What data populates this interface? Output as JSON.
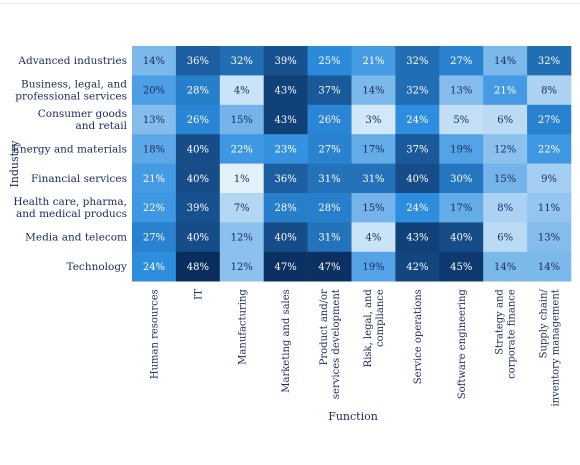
{
  "chart_data": {
    "type": "heatmap",
    "xlabel": "Function",
    "ylabel": "Industry",
    "rows": [
      [
        "Advanced industries"
      ],
      [
        "Business, legal, and",
        "professional services"
      ],
      [
        "Consumer goods",
        "and retail"
      ],
      [
        "Energy and materials"
      ],
      [
        "Financial services"
      ],
      [
        "Health care, pharma,",
        "and medical producs"
      ],
      [
        "Media and telecom"
      ],
      [
        "Technology"
      ]
    ],
    "columns": [
      [
        "Human resources"
      ],
      [
        "IT"
      ],
      [
        "Manufacturing"
      ],
      [
        "Marketing and sales"
      ],
      [
        "Product and/or",
        "services development"
      ],
      [
        "Risk, legal, and",
        "compliance"
      ],
      [
        "Service operations"
      ],
      [
        "Software engineering"
      ],
      [
        "Strategy and",
        "corporate finance"
      ],
      [
        "Supply chain/",
        "inventory management"
      ]
    ],
    "values": [
      [
        14,
        36,
        32,
        39,
        25,
        21,
        32,
        27,
        14,
        32
      ],
      [
        20,
        28,
        4,
        43,
        37,
        14,
        32,
        13,
        21,
        8
      ],
      [
        13,
        26,
        15,
        43,
        26,
        3,
        24,
        5,
        6,
        27
      ],
      [
        18,
        40,
        22,
        23,
        27,
        17,
        37,
        19,
        12,
        22
      ],
      [
        21,
        40,
        1,
        36,
        31,
        31,
        40,
        30,
        15,
        9
      ],
      [
        22,
        39,
        7,
        28,
        28,
        15,
        24,
        17,
        8,
        11
      ],
      [
        27,
        40,
        12,
        40,
        31,
        4,
        43,
        40,
        6,
        13
      ],
      [
        24,
        48,
        12,
        47,
        47,
        19,
        42,
        45,
        14,
        14
      ]
    ],
    "value_suffix": "%",
    "color_scale": {
      "low": "#eaf4fb",
      "mid": "#2d8ee0",
      "high": "#0a2d5e"
    }
  }
}
